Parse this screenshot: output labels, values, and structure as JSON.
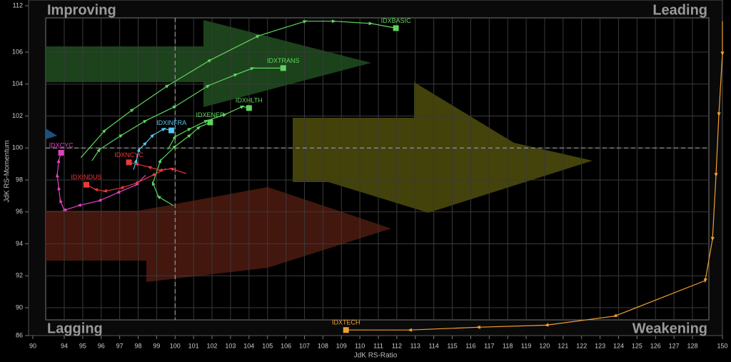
{
  "chart_data": {
    "type": "rrg",
    "x_label": "JdK RS-Ratio",
    "y_label": "JdK RS-Momentum",
    "quadrants": {
      "top_left": "Improving",
      "top_right": "Leading",
      "bottom_left": "Lagging",
      "bottom_right": "Weakening"
    },
    "xlim": [
      90,
      150
    ],
    "ylim": [
      86,
      112
    ],
    "xticks": [
      90,
      94,
      95,
      96,
      97,
      98,
      99,
      100,
      101,
      102,
      103,
      104,
      105,
      106,
      107,
      108,
      109,
      110,
      111,
      112,
      113,
      114,
      115,
      116,
      117,
      118,
      119,
      120,
      121,
      122,
      123,
      124,
      125,
      126,
      127,
      128,
      150
    ],
    "yticks": [
      86,
      90,
      92,
      94,
      96,
      98,
      100,
      102,
      104,
      106,
      112
    ],
    "center": [
      100,
      100
    ],
    "grid": true,
    "series": [
      {
        "name": "IDXBASIC",
        "color": "#5fd35f",
        "x": [
          94.9,
          96.2,
          97.7,
          99.6,
          101.9,
          104.5,
          107.05,
          108.6,
          110.6,
          111.95
        ],
        "y": [
          99.4,
          101.1,
          102.4,
          103.9,
          105.5,
          108.1,
          110.0,
          110.0,
          109.7,
          109.1
        ]
      },
      {
        "name": "IDXTRANS",
        "color": "#5fd35f",
        "x": [
          95.5,
          95.9,
          97.1,
          98.4,
          100.0,
          101.8,
          103.3,
          104.2,
          105.85
        ],
        "y": [
          99.2,
          99.9,
          100.8,
          101.7,
          102.6,
          103.9,
          104.6,
          105.0,
          105.0
        ]
      },
      {
        "name": "IDXHLTH",
        "color": "#5fd35f",
        "x": [
          99.6,
          100.0,
          100.8,
          101.7,
          102.7,
          103.65,
          104.0
        ],
        "y": [
          99.9,
          100.7,
          101.2,
          101.7,
          102.1,
          102.6,
          102.5
        ]
      },
      {
        "name": "IDXENER",
        "color": "#5fd35f",
        "x": [
          99.9,
          99.1,
          98.8,
          99.2,
          100.0,
          100.8,
          101.3,
          101.9
        ],
        "y": [
          96.4,
          96.95,
          97.8,
          99.2,
          100.1,
          100.8,
          101.3,
          101.6
        ]
      },
      {
        "name": "IDXINFRA",
        "color": "#55c8f0",
        "x": [
          97.75,
          97.9,
          98.05,
          98.4,
          98.8,
          99.4,
          99.8
        ],
        "y": [
          98.65,
          99.2,
          99.9,
          100.3,
          100.8,
          101.2,
          101.1
        ]
      },
      {
        "name": "IDXCYC",
        "color": "#e040c0",
        "x": [
          98.4,
          97.9,
          96.9,
          95.9,
          94.8,
          94.0,
          93.5,
          93.3,
          93.1,
          93.3,
          93.6
        ],
        "y": [
          98.3,
          97.7,
          97.2,
          96.7,
          96.4,
          96.1,
          96.7,
          97.5,
          98.3,
          99.2,
          99.7
        ]
      },
      {
        "name": "IDXINDUS",
        "color": "#e83a3a",
        "x": [
          99.5,
          98.8,
          97.9,
          97.1,
          96.2,
          95.7,
          95.2
        ],
        "y": [
          98.7,
          98.3,
          97.8,
          97.5,
          97.3,
          97.4,
          97.7
        ]
      },
      {
        "name": "IDXNCYC",
        "color": "#e83a3a",
        "x": [
          100.6,
          99.8,
          99.2,
          98.6,
          97.9,
          97.5
        ],
        "y": [
          98.4,
          98.7,
          98.6,
          98.8,
          99.0,
          99.1
        ]
      },
      {
        "name": "IDXTECH",
        "color": "#f0a030",
        "x": [
          150,
          150,
          147.4,
          145.3,
          142.7,
          137.4,
          123.8,
          120.1,
          116.4,
          112.7,
          109.25
        ],
        "y": [
          110.0,
          105.9,
          102.1,
          98.3,
          94.3,
          91.7,
          88.8,
          87.5,
          87.2,
          86.8,
          86.8
        ]
      }
    ]
  }
}
